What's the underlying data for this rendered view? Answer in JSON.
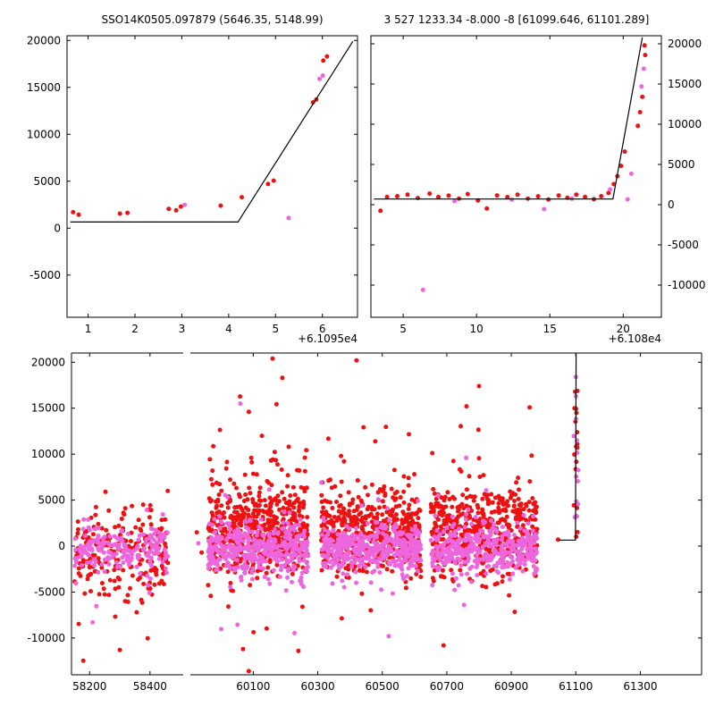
{
  "figure": {
    "background": "#ffffff"
  },
  "colors": {
    "red": "#ee1111",
    "violet": "#ee66dd",
    "axis": "#000000"
  },
  "chart_data": [
    {
      "id": "top-left",
      "type": "scatter",
      "title": "SSO14K0505.097879 (5646.35, 5148.99)",
      "x_offset_label": "+6.1095e4",
      "xlim": [
        0.55,
        6.75
      ],
      "ylim": [
        -9500,
        20500
      ],
      "xticks": [
        1,
        2,
        3,
        4,
        5,
        6
      ],
      "yticks": [
        -5000,
        0,
        5000,
        10000,
        15000,
        20000
      ],
      "yticks_side": "left",
      "line": [
        [
          0.62,
          650
        ],
        [
          4.2,
          650
        ],
        [
          6.65,
          19900
        ]
      ],
      "red_points": [
        [
          0.68,
          1700
        ],
        [
          0.8,
          1430
        ],
        [
          1.68,
          1550
        ],
        [
          1.84,
          1620
        ],
        [
          2.72,
          2050
        ],
        [
          2.88,
          1900
        ],
        [
          2.98,
          2300
        ],
        [
          3.83,
          2400
        ],
        [
          4.28,
          3300
        ],
        [
          4.84,
          4700
        ],
        [
          4.96,
          5060
        ],
        [
          5.8,
          13400
        ],
        [
          5.87,
          13700
        ],
        [
          6.02,
          17850
        ],
        [
          6.1,
          18300
        ]
      ],
      "violet_points": [
        [
          3.06,
          2480
        ],
        [
          5.28,
          1080
        ],
        [
          5.94,
          15900
        ],
        [
          6.01,
          16250
        ]
      ]
    },
    {
      "id": "top-right",
      "type": "scatter",
      "title": "3 527 1233.34 -8.000 -8 [61099.646, 61101.289]",
      "x_offset_label": "+6.108e4",
      "xlim": [
        2.8,
        22.6
      ],
      "ylim": [
        -14000,
        21000
      ],
      "xticks": [
        5,
        10,
        15,
        20
      ],
      "yticks": [
        -10000,
        -5000,
        0,
        5000,
        10000,
        15000,
        20000
      ],
      "yticks_side": "right",
      "line": [
        [
          3.0,
          700
        ],
        [
          19.3,
          700
        ],
        [
          21.3,
          20800
        ]
      ],
      "red_points": [
        [
          3.45,
          -750
        ],
        [
          3.9,
          950
        ],
        [
          4.6,
          1050
        ],
        [
          5.3,
          1250
        ],
        [
          6.0,
          820
        ],
        [
          6.8,
          1380
        ],
        [
          7.4,
          950
        ],
        [
          8.1,
          1120
        ],
        [
          8.8,
          760
        ],
        [
          9.4,
          1320
        ],
        [
          10.1,
          520
        ],
        [
          10.7,
          -480
        ],
        [
          11.4,
          1140
        ],
        [
          12.1,
          940
        ],
        [
          12.8,
          1240
        ],
        [
          13.5,
          760
        ],
        [
          14.2,
          1040
        ],
        [
          14.9,
          640
        ],
        [
          15.6,
          1140
        ],
        [
          16.2,
          860
        ],
        [
          16.8,
          1240
        ],
        [
          17.4,
          960
        ],
        [
          18.0,
          680
        ],
        [
          18.5,
          1060
        ],
        [
          19.0,
          1460
        ],
        [
          19.35,
          2560
        ],
        [
          19.6,
          3540
        ],
        [
          19.85,
          4820
        ],
        [
          20.1,
          6600
        ],
        [
          21.0,
          9800
        ],
        [
          21.15,
          11500
        ],
        [
          21.3,
          13400
        ],
        [
          21.5,
          18600
        ],
        [
          21.45,
          19800
        ]
      ],
      "violet_points": [
        [
          6.35,
          -10600
        ],
        [
          8.5,
          430
        ],
        [
          12.4,
          620
        ],
        [
          14.6,
          -560
        ],
        [
          16.5,
          740
        ],
        [
          19.1,
          1900
        ],
        [
          20.3,
          660
        ],
        [
          20.55,
          3840
        ],
        [
          21.25,
          14700
        ],
        [
          21.4,
          16900
        ]
      ]
    },
    {
      "id": "bottom",
      "type": "scatter-broken-x",
      "ylim": [
        -14000,
        21000
      ],
      "yticks": [
        -10000,
        -5000,
        0,
        5000,
        10000,
        15000,
        20000
      ],
      "yticks_side": "left",
      "segments": [
        {
          "xlim": [
            58140,
            58510
          ],
          "xticks": [
            58200,
            58400
          ]
        },
        {
          "xlim": [
            59905,
            61490
          ],
          "xticks": [
            60100,
            60300,
            60500,
            60700,
            60900,
            61100,
            61300
          ]
        }
      ],
      "line": [
        [
          61048,
          650
        ],
        [
          61099,
          650
        ],
        [
          61101,
          21000
        ]
      ],
      "clusters": [
        {
          "x_range": [
            58150,
            58460
          ],
          "red": {
            "count": 230,
            "mean": -700,
            "sd": 2300,
            "wide_p": 0.13,
            "wide_mean": -2000,
            "wide_sd": 4200
          },
          "violet": {
            "count": 190,
            "mean": -350,
            "sd": 1200,
            "wide_p": 0.1,
            "wide_mean": -900,
            "wide_sd": 3200
          }
        },
        {
          "x_range": [
            59960,
            60270
          ],
          "red": {
            "count": 560,
            "mean": 1600,
            "sd": 2400,
            "wide_p": 0.16,
            "wide_mean": 3000,
            "wide_sd": 6000
          },
          "violet": {
            "count": 420,
            "mean": -350,
            "sd": 1300,
            "wide_p": 0.12,
            "wide_mean": -800,
            "wide_sd": 3600
          }
        },
        {
          "x_range": [
            60310,
            60620
          ],
          "red": {
            "count": 520,
            "mean": 1500,
            "sd": 2300,
            "wide_p": 0.14,
            "wide_mean": 2500,
            "wide_sd": 5200
          },
          "violet": {
            "count": 400,
            "mean": -350,
            "sd": 1250,
            "wide_p": 0.11,
            "wide_mean": -700,
            "wide_sd": 3300
          }
        },
        {
          "x_range": [
            60650,
            60980
          ],
          "red": {
            "count": 500,
            "mean": 1500,
            "sd": 2300,
            "wide_p": 0.14,
            "wide_mean": 2500,
            "wide_sd": 5200
          },
          "violet": {
            "count": 380,
            "mean": -350,
            "sd": 1300,
            "wide_p": 0.11,
            "wide_mean": -700,
            "wide_sd": 3400
          }
        },
        {
          "x_range": [
            61092,
            61108
          ],
          "red": {
            "count": 16,
            "y_dist": "uniform",
            "y_range": [
              300,
              18600
            ]
          },
          "violet": {
            "count": 13,
            "y_dist": "uniform",
            "y_range": [
              300,
              18000
            ]
          }
        }
      ],
      "extra_points": [
        [
          60160,
          20400,
          "red"
        ],
        [
          60190,
          18300,
          "red"
        ],
        [
          60420,
          20200,
          "red"
        ],
        [
          60800,
          17400,
          "red"
        ],
        [
          60240,
          -11400,
          "red"
        ],
        [
          58300,
          -11300,
          "red"
        ],
        [
          60690,
          -10800,
          "red"
        ],
        [
          60520,
          -9800,
          "violet"
        ],
        [
          58210,
          -8300,
          "violet"
        ],
        [
          61100,
          18400,
          "violet"
        ],
        [
          61098,
          16800,
          "red"
        ],
        [
          60060,
          15500,
          "violet"
        ],
        [
          60760,
          9600,
          "violet"
        ],
        [
          59930,
          300,
          "violet"
        ],
        [
          59940,
          -700,
          "red"
        ],
        [
          59925,
          1500,
          "red"
        ],
        [
          61045,
          700,
          "red"
        ]
      ]
    }
  ]
}
